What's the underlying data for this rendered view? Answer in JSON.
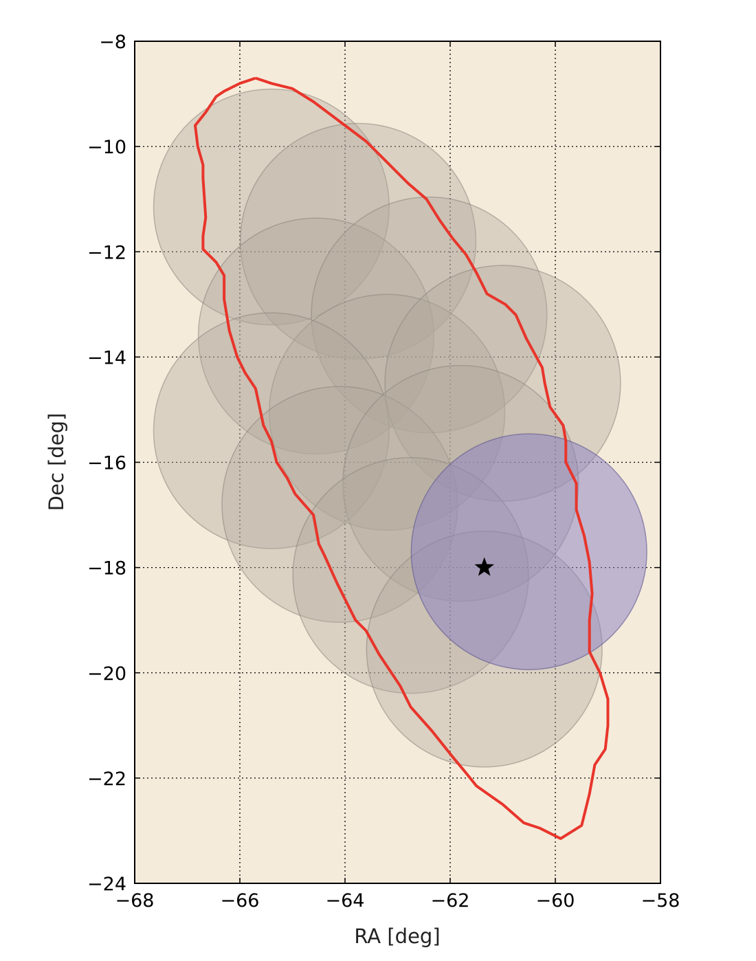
{
  "chart_data": {
    "type": "scatter",
    "xlabel": "RA [deg]",
    "ylabel": "Dec [deg]",
    "xlim": [
      -68,
      -58
    ],
    "ylim": [
      -24,
      -8
    ],
    "x_ticks": [
      -68,
      -66,
      -64,
      -62,
      -60,
      -58
    ],
    "y_ticks": [
      -24,
      -22,
      -20,
      -18,
      -16,
      -14,
      -12,
      -10,
      -8
    ],
    "x_tick_labels": [
      "−68",
      "−66",
      "−64",
      "−62",
      "−60",
      "−58"
    ],
    "y_tick_labels": [
      "−24",
      "−22",
      "−20",
      "−18",
      "−16",
      "−14",
      "−12",
      "−10",
      "−8"
    ],
    "grid": true,
    "background_color": "#f5ebdb",
    "fields_color": "#b0a89c",
    "selected_field_color": "#8a80c4",
    "contour_color": "#e8352b",
    "fields": [
      {
        "ra": -65.4,
        "dec": -11.15,
        "r": 2.24
      },
      {
        "ra": -63.75,
        "dec": -11.8,
        "r": 2.24
      },
      {
        "ra": -64.55,
        "dec": -13.6,
        "r": 2.24
      },
      {
        "ra": -62.4,
        "dec": -13.2,
        "r": 2.24
      },
      {
        "ra": -63.2,
        "dec": -15.05,
        "r": 2.24
      },
      {
        "ra": -61.0,
        "dec": -14.5,
        "r": 2.24
      },
      {
        "ra": -65.4,
        "dec": -15.4,
        "r": 2.24
      },
      {
        "ra": -64.1,
        "dec": -16.8,
        "r": 2.24
      },
      {
        "ra": -61.8,
        "dec": -16.4,
        "r": 2.24
      },
      {
        "ra": -62.75,
        "dec": -18.15,
        "r": 2.24
      },
      {
        "ra": -61.35,
        "dec": -19.55,
        "r": 2.24
      }
    ],
    "selected_field": {
      "ra": -60.5,
      "dec": -17.7,
      "r": 2.24
    },
    "star": {
      "ra": -61.35,
      "dec": -18.0
    },
    "contour": [
      [
        -65.7,
        -8.7
      ],
      [
        -65.4,
        -8.8
      ],
      [
        -65.0,
        -8.9
      ],
      [
        -64.6,
        -9.15
      ],
      [
        -64.2,
        -9.45
      ],
      [
        -63.6,
        -9.9
      ],
      [
        -63.2,
        -10.3
      ],
      [
        -62.8,
        -10.7
      ],
      [
        -62.45,
        -11.0
      ],
      [
        -62.2,
        -11.4
      ],
      [
        -61.95,
        -11.75
      ],
      [
        -61.7,
        -12.05
      ],
      [
        -61.5,
        -12.4
      ],
      [
        -61.3,
        -12.8
      ],
      [
        -60.95,
        -13.0
      ],
      [
        -60.75,
        -13.2
      ],
      [
        -60.55,
        -13.65
      ],
      [
        -60.25,
        -14.2
      ],
      [
        -60.2,
        -14.5
      ],
      [
        -60.1,
        -14.95
      ],
      [
        -59.85,
        -15.3
      ],
      [
        -59.8,
        -15.6
      ],
      [
        -59.8,
        -16.0
      ],
      [
        -59.6,
        -16.4
      ],
      [
        -59.6,
        -16.9
      ],
      [
        -59.45,
        -17.4
      ],
      [
        -59.35,
        -17.9
      ],
      [
        -59.3,
        -18.5
      ],
      [
        -59.35,
        -19.0
      ],
      [
        -59.35,
        -19.6
      ],
      [
        -59.15,
        -20.0
      ],
      [
        -59.0,
        -20.5
      ],
      [
        -59.0,
        -21.0
      ],
      [
        -59.05,
        -21.45
      ],
      [
        -59.25,
        -21.75
      ],
      [
        -59.35,
        -22.3
      ],
      [
        -59.5,
        -22.9
      ],
      [
        -59.9,
        -23.15
      ],
      [
        -60.3,
        -22.95
      ],
      [
        -60.6,
        -22.85
      ],
      [
        -61.0,
        -22.5
      ],
      [
        -61.5,
        -22.15
      ],
      [
        -61.7,
        -21.9
      ],
      [
        -61.95,
        -21.6
      ],
      [
        -62.35,
        -21.1
      ],
      [
        -62.75,
        -20.65
      ],
      [
        -62.95,
        -20.25
      ],
      [
        -63.35,
        -19.65
      ],
      [
        -63.6,
        -19.2
      ],
      [
        -63.8,
        -19.0
      ],
      [
        -64.0,
        -18.6
      ],
      [
        -64.15,
        -18.3
      ],
      [
        -64.4,
        -17.75
      ],
      [
        -64.5,
        -17.55
      ],
      [
        -64.6,
        -17.0
      ],
      [
        -64.95,
        -16.6
      ],
      [
        -65.1,
        -16.3
      ],
      [
        -65.3,
        -16.0
      ],
      [
        -65.4,
        -15.6
      ],
      [
        -65.55,
        -15.3
      ],
      [
        -65.7,
        -14.6
      ],
      [
        -65.9,
        -14.3
      ],
      [
        -66.05,
        -14.0
      ],
      [
        -66.2,
        -13.5
      ],
      [
        -66.3,
        -12.9
      ],
      [
        -66.3,
        -12.45
      ],
      [
        -66.45,
        -12.2
      ],
      [
        -66.7,
        -11.95
      ],
      [
        -66.7,
        -11.7
      ],
      [
        -66.65,
        -11.35
      ],
      [
        -66.7,
        -10.6
      ],
      [
        -66.7,
        -10.35
      ],
      [
        -66.8,
        -10.0
      ],
      [
        -66.85,
        -9.6
      ],
      [
        -66.65,
        -9.35
      ],
      [
        -66.45,
        -9.05
      ],
      [
        -66.3,
        -8.95
      ],
      [
        -66.0,
        -8.8
      ],
      [
        -65.7,
        -8.7
      ]
    ]
  }
}
